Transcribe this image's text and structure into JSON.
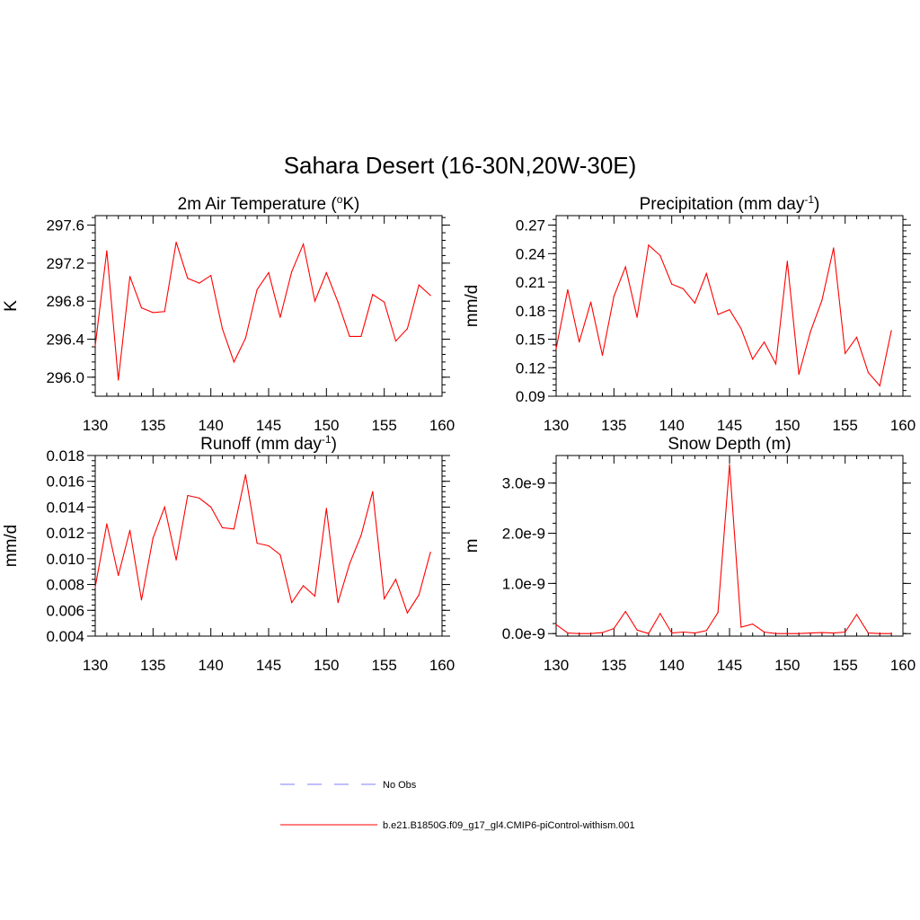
{
  "figure": {
    "title": "Sahara Desert (16-30N,20W-30E)"
  },
  "legend": {
    "entries": [
      {
        "label": "No Obs",
        "color": "#9999ff",
        "style": "dashed"
      },
      {
        "label": "b.e21.B1850G.f09_g17_gl4.CMIP6-piControl-withism.001",
        "color": "#ff3333",
        "style": "solid"
      }
    ]
  },
  "chart_data": [
    {
      "type": "line",
      "title_main": "2m Air Temperature (",
      "title_sup": "o",
      "title_end": "K)",
      "ylabel": "K",
      "xlim": [
        130,
        160
      ],
      "ylim": [
        295.8,
        297.7
      ],
      "xticks": [
        130,
        135,
        140,
        145,
        150,
        155,
        160
      ],
      "yticks": [
        "296.0",
        "296.4",
        "296.8",
        "297.2",
        "297.6"
      ],
      "ytick_values": [
        296.0,
        296.4,
        296.8,
        297.2,
        297.6
      ],
      "color": "#ff0000",
      "x": [
        130,
        131,
        132,
        133,
        134,
        135,
        136,
        137,
        138,
        139,
        140,
        141,
        142,
        143,
        144,
        145,
        146,
        147,
        148,
        149,
        150,
        151,
        152,
        153,
        154,
        155,
        156,
        157,
        158,
        159
      ],
      "y": [
        296.33,
        297.33,
        295.97,
        297.06,
        296.73,
        296.68,
        296.69,
        297.42,
        297.04,
        296.99,
        297.07,
        296.51,
        296.16,
        296.41,
        296.92,
        297.1,
        296.63,
        297.11,
        297.4,
        296.8,
        297.1,
        296.79,
        296.43,
        296.43,
        296.87,
        296.79,
        296.38,
        296.51,
        296.97,
        296.86
      ]
    },
    {
      "type": "line",
      "title_main": "Precipitation (mm day",
      "title_sup": "-1",
      "title_end": ")",
      "ylabel": "mm/d",
      "xlim": [
        130,
        160
      ],
      "ylim": [
        0.09,
        0.28
      ],
      "xticks": [
        130,
        135,
        140,
        145,
        150,
        155,
        160
      ],
      "yticks": [
        "0.09",
        "0.12",
        "0.15",
        "0.18",
        "0.21",
        "0.24",
        "0.27"
      ],
      "ytick_values": [
        0.09,
        0.12,
        0.15,
        0.18,
        0.21,
        0.24,
        0.27
      ],
      "color": "#ff0000",
      "x": [
        130,
        131,
        132,
        133,
        134,
        135,
        136,
        137,
        138,
        139,
        140,
        141,
        142,
        143,
        144,
        145,
        146,
        147,
        148,
        149,
        150,
        151,
        152,
        153,
        154,
        155,
        156,
        157,
        158,
        159
      ],
      "y": [
        0.14,
        0.202,
        0.147,
        0.189,
        0.133,
        0.195,
        0.226,
        0.173,
        0.249,
        0.238,
        0.208,
        0.203,
        0.188,
        0.219,
        0.176,
        0.181,
        0.161,
        0.129,
        0.147,
        0.124,
        0.232,
        0.113,
        0.158,
        0.191,
        0.246,
        0.135,
        0.152,
        0.115,
        0.101,
        0.159
      ]
    },
    {
      "type": "line",
      "title_main": "Runoff (mm day",
      "title_sup": "-1",
      "title_end": ")",
      "ylabel": "mm/d",
      "xlim": [
        130,
        160
      ],
      "ylim": [
        0.004,
        0.018
      ],
      "xticks": [
        130,
        135,
        140,
        145,
        150,
        155,
        160
      ],
      "yticks": [
        "0.004",
        "0.006",
        "0.008",
        "0.010",
        "0.012",
        "0.014",
        "0.016",
        "0.018"
      ],
      "ytick_values": [
        0.004,
        0.006,
        0.008,
        0.01,
        0.012,
        0.014,
        0.016,
        0.018
      ],
      "color": "#ff0000",
      "x": [
        130,
        131,
        132,
        133,
        134,
        135,
        136,
        137,
        138,
        139,
        140,
        141,
        142,
        143,
        144,
        145,
        146,
        147,
        148,
        149,
        150,
        151,
        152,
        153,
        154,
        155,
        156,
        157,
        158,
        159
      ],
      "y": [
        0.0078,
        0.0127,
        0.0087,
        0.0122,
        0.0068,
        0.0116,
        0.014,
        0.0099,
        0.0149,
        0.0147,
        0.014,
        0.0124,
        0.0123,
        0.0165,
        0.0112,
        0.011,
        0.0103,
        0.0066,
        0.0079,
        0.0071,
        0.0139,
        0.0066,
        0.0096,
        0.0118,
        0.0152,
        0.0069,
        0.0084,
        0.0058,
        0.0072,
        0.0105
      ]
    },
    {
      "type": "line",
      "title_main": "Snow Depth (m)",
      "title_sup": "",
      "title_end": "",
      "ylabel": "m",
      "xlim": [
        130,
        160
      ],
      "ylim": [
        -5e-11,
        3.55e-09
      ],
      "xticks": [
        130,
        135,
        140,
        145,
        150,
        155,
        160
      ],
      "yticks": [
        "0.0e-9",
        "1.0e-9",
        "2.0e-9",
        "3.0e-9"
      ],
      "ytick_values": [
        0,
        1e-09,
        2e-09,
        3e-09
      ],
      "color": "#ff0000",
      "x": [
        130,
        131,
        132,
        133,
        134,
        135,
        136,
        137,
        138,
        139,
        140,
        141,
        142,
        143,
        144,
        145,
        146,
        147,
        148,
        149,
        150,
        151,
        152,
        153,
        154,
        155,
        156,
        157,
        158,
        159
      ],
      "y": [
        1.8e-10,
        1e-11,
        0.0,
        0.0,
        2e-11,
        1e-10,
        4.4e-10,
        7e-11,
        0.0,
        4e-10,
        1e-11,
        3e-11,
        1e-11,
        6e-11,
        4.2e-10,
        3.37e-09,
        1.3e-10,
        1.9e-10,
        3e-11,
        0.0,
        0.0,
        0.0,
        1e-11,
        2e-11,
        1e-11,
        3e-11,
        3.8e-10,
        1e-11,
        0.0,
        0.0
      ]
    }
  ]
}
